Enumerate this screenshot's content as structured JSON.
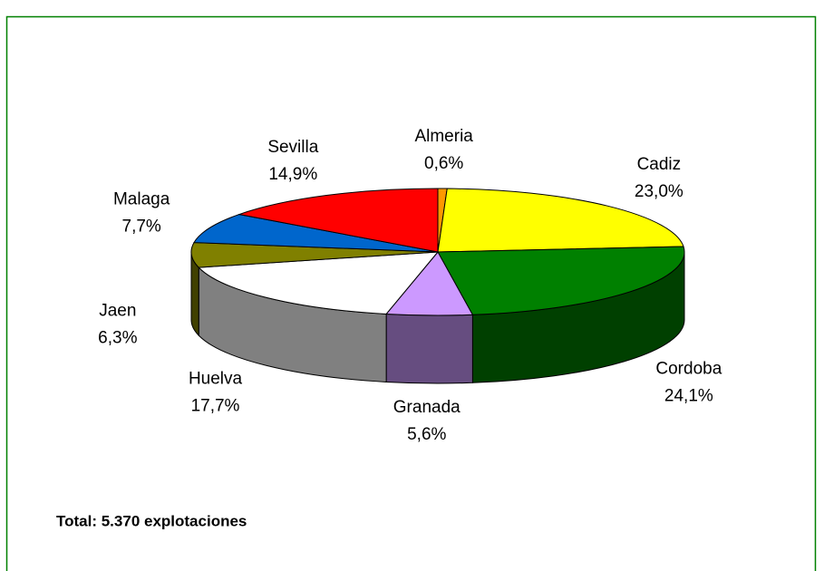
{
  "chart_data": {
    "type": "pie3d",
    "categories": [
      "Almeria",
      "Cadiz",
      "Cordoba",
      "Granada",
      "Huelva",
      "Jaen",
      "Malaga",
      "Sevilla"
    ],
    "values": [
      0.6,
      23.0,
      24.1,
      5.6,
      17.7,
      6.3,
      7.7,
      14.9
    ],
    "value_labels": [
      "0,6%",
      "23,0%",
      "24,1%",
      "5,6%",
      "17,7%",
      "6,3%",
      "7,7%",
      "14,9%"
    ],
    "colors": [
      "#ff9900",
      "#ffff00",
      "#008000",
      "#cc99ff",
      "#ffffff",
      "#808000",
      "#0066cc",
      "#ff0000"
    ],
    "annotation": "Total: 5.370 explotaciones"
  }
}
